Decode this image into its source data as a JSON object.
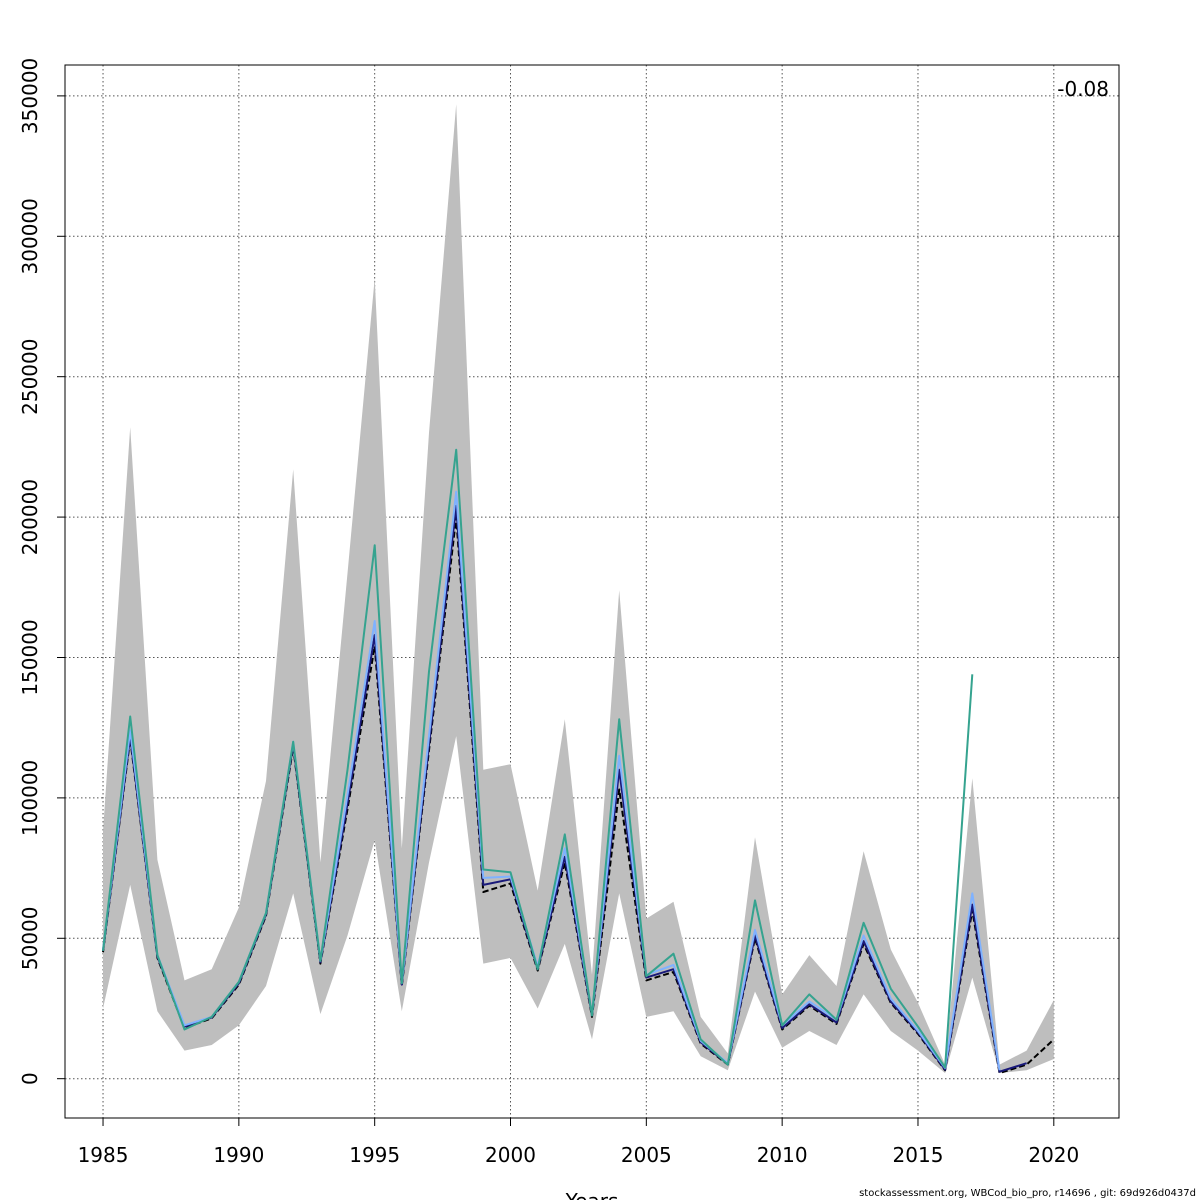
{
  "chart_data": {
    "type": "line",
    "title": "",
    "xlabel": "Years",
    "ylabel": "",
    "xlim": [
      1983.6,
      2022.4
    ],
    "ylim": [
      -14000,
      361000
    ],
    "x_ticks": [
      1985,
      1990,
      1995,
      2000,
      2005,
      2010,
      2015,
      2020
    ],
    "y_ticks": [
      0,
      50000,
      100000,
      150000,
      200000,
      250000,
      300000,
      350000
    ],
    "grid": true,
    "legend": "none",
    "annotation": "-0.08",
    "band": {
      "x": [
        1985,
        1986,
        1987,
        1988,
        1989,
        1990,
        1991,
        1992,
        1993,
        1994,
        1995,
        1996,
        1997,
        1998,
        1999,
        2000,
        2001,
        2002,
        2003,
        2004,
        2005,
        2006,
        2007,
        2008,
        2009,
        2010,
        2011,
        2012,
        2013,
        2014,
        2015,
        2016,
        2017,
        2018,
        2019,
        2020
      ],
      "upper": [
        88000,
        232000,
        78000,
        35000,
        39000,
        61000,
        106000,
        217000,
        77000,
        180000,
        285000,
        82000,
        230000,
        347000,
        110000,
        112000,
        67000,
        128000,
        37000,
        174000,
        57000,
        63000,
        22000,
        9000,
        86000,
        30000,
        44000,
        33000,
        81000,
        46000,
        27000,
        5000,
        107000,
        5000,
        10000,
        28000
      ],
      "lower": [
        25000,
        69000,
        24000,
        10000,
        12000,
        19000,
        33000,
        66000,
        23000,
        51000,
        85000,
        24000,
        77000,
        122000,
        41000,
        43000,
        25000,
        48000,
        14000,
        66000,
        22000,
        24000,
        8000,
        3000,
        31000,
        11000,
        17000,
        12000,
        30000,
        17000,
        10000,
        2000,
        36000,
        2000,
        3000,
        7000
      ]
    },
    "series": [
      {
        "color": "#000000",
        "dashed": true,
        "x": [
          1985,
          1986,
          1987,
          1988,
          1989,
          1990,
          1991,
          1992,
          1993,
          1994,
          1995,
          1996,
          1997,
          1998,
          1999,
          2000,
          2001,
          2002,
          2003,
          2004,
          2005,
          2006,
          2007,
          2008,
          2009,
          2010,
          2011,
          2012,
          2013,
          2014,
          2015,
          2016,
          2017,
          2018,
          2019,
          2020
        ],
        "y": [
          45000,
          121000,
          43000,
          18000,
          21500,
          33500,
          58000,
          118000,
          41000,
          96000,
          154000,
          33000,
          117000,
          200000,
          66500,
          69500,
          38500,
          77000,
          22000,
          103000,
          35000,
          38000,
          12500,
          5000,
          50000,
          17500,
          26000,
          19500,
          48000,
          27000,
          16000,
          3000,
          60000,
          2000,
          5000,
          14000
        ]
      },
      {
        "color": "#1a1a7a",
        "dashed": false,
        "x": [
          1985,
          1986,
          1987,
          1988,
          1989,
          1990,
          1991,
          1992,
          1993,
          1994,
          1995,
          1996,
          1997,
          1998,
          1999,
          2000,
          2001,
          2002,
          2003,
          2004,
          2005,
          2006,
          2007,
          2008,
          2009,
          2010,
          2011,
          2012,
          2013,
          2014,
          2015,
          2016,
          2017,
          2018,
          2019
        ],
        "y": [
          45500,
          122000,
          43500,
          18500,
          21800,
          34000,
          58500,
          119000,
          41500,
          98000,
          158000,
          33500,
          119000,
          204000,
          69000,
          71000,
          39000,
          79000,
          22500,
          110000,
          36000,
          39000,
          13000,
          5200,
          51000,
          18000,
          26500,
          20000,
          49000,
          27500,
          16500,
          3200,
          62000,
          2500,
          5500
        ]
      },
      {
        "color": "#7fb2ff",
        "dashed": false,
        "x": [
          1985,
          1986,
          1987,
          1988,
          1989,
          1990,
          1991,
          1992,
          1993,
          1994,
          1995,
          1996,
          1997,
          1998,
          1999,
          2000,
          2001,
          2002,
          2003,
          2004,
          2005,
          2006,
          2007,
          2008,
          2009,
          2010,
          2011,
          2012,
          2013,
          2014,
          2015,
          2016,
          2017,
          2018
        ],
        "y": [
          46000,
          124000,
          44000,
          19000,
          22000,
          34500,
          59000,
          120000,
          42000,
          101000,
          163000,
          34000,
          122000,
          209000,
          71500,
          72000,
          40000,
          82000,
          23000,
          115000,
          37000,
          40500,
          13500,
          5500,
          53000,
          19000,
          27500,
          21000,
          51000,
          28500,
          17000,
          3800,
          66000,
          3000
        ]
      },
      {
        "color": "#35a38f",
        "dashed": false,
        "x": [
          1985,
          1986,
          1987,
          1988,
          1989,
          1990,
          1991,
          1992,
          1993,
          1994,
          1995,
          1996,
          1997,
          1998,
          1999,
          2000,
          2001,
          2002,
          2003,
          2004,
          2005,
          2006,
          2007,
          2008,
          2009,
          2010,
          2011,
          2012,
          2013,
          2014,
          2015,
          2016,
          2017
        ],
        "y": [
          45500,
          129000,
          44000,
          17500,
          22000,
          34500,
          59000,
          120000,
          42000,
          110000,
          190000,
          34000,
          145000,
          224000,
          74500,
          73500,
          39000,
          87000,
          22500,
          128000,
          36500,
          44500,
          14000,
          5000,
          63500,
          19000,
          30000,
          21000,
          55500,
          32000,
          18500,
          4000,
          144000
        ]
      }
    ]
  },
  "footer": {
    "credit": "stockassessment.org, WBCod_bio_pro, r14696 , git: 69d926d0437d"
  }
}
